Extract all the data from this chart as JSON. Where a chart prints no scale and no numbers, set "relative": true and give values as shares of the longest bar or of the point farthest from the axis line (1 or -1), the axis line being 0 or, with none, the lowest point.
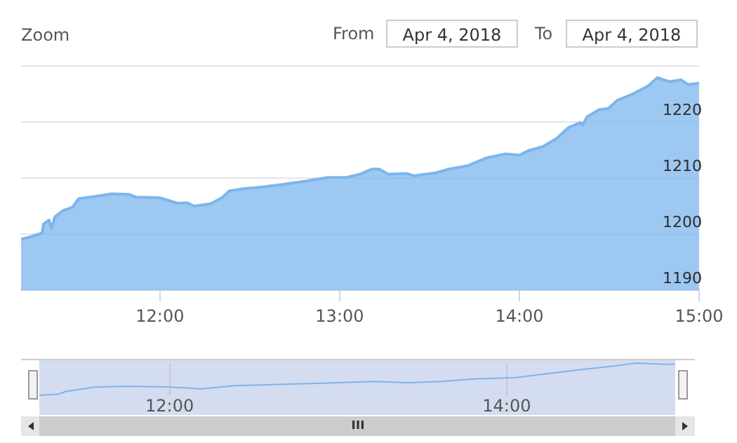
{
  "chart_data": [
    {
      "type": "area",
      "color": "#7cb5ec",
      "grid": "y",
      "annotations": [
        "Zoom",
        "From",
        "Apr 4, 2018",
        "To",
        "Apr 4, 2018"
      ],
      "x": [
        11.227,
        11.279,
        11.344,
        11.352,
        11.383,
        11.396,
        11.416,
        11.461,
        11.513,
        11.547,
        11.63,
        11.734,
        11.826,
        11.865,
        11.995,
        12.099,
        12.151,
        12.19,
        12.281,
        12.346,
        12.385,
        12.463,
        12.568,
        12.672,
        12.802,
        12.932,
        13.037,
        13.115,
        13.18,
        13.219,
        13.271,
        13.375,
        13.414,
        13.531,
        13.609,
        13.713,
        13.818,
        13.922,
        14.0,
        14.052,
        14.13,
        14.209,
        14.273,
        14.338,
        14.352,
        14.377,
        14.443,
        14.495,
        14.547,
        14.625,
        14.716,
        14.768,
        14.834,
        14.898,
        14.938,
        15.0
      ],
      "values": [
        1199.1,
        1199.5,
        1200.2,
        1201.8,
        1202.5,
        1201,
        1203.1,
        1204.2,
        1204.8,
        1206.3,
        1206.7,
        1207.2,
        1207.1,
        1206.6,
        1206.5,
        1205.5,
        1205.6,
        1205.0,
        1205.4,
        1206.5,
        1207.7,
        1208.1,
        1208.4,
        1208.8,
        1209.4,
        1210.1,
        1210.1,
        1210.7,
        1211.6,
        1211.6,
        1210.7,
        1210.8,
        1210.4,
        1210.9,
        1211.6,
        1212.2,
        1213.6,
        1214.3,
        1214.1,
        1214.9,
        1215.6,
        1217.1,
        1219.0,
        1219.9,
        1219.5,
        1220.9,
        1222.2,
        1222.4,
        1223.9,
        1224.9,
        1226.4,
        1227.9,
        1227.2,
        1227.5,
        1226.7,
        1226.9
      ],
      "xlim": [
        11.227,
        15
      ],
      "xticks": [
        {
          "value": 12,
          "label": "12:00"
        },
        {
          "value": 13,
          "label": "13:00"
        },
        {
          "value": 14,
          "label": "14:00"
        },
        {
          "value": 15,
          "label": "15:00"
        }
      ],
      "ylim": [
        1190,
        1230
      ],
      "yticks": [
        1190,
        1200,
        1210,
        1220,
        {
          "value": 1230,
          "label": null
        }
      ]
    },
    {
      "type": "line",
      "color": "#7cb5ec",
      "grid": "x",
      "relative": true,
      "x": [
        11.227,
        11.344,
        11.383,
        11.461,
        11.547,
        11.734,
        11.995,
        12.19,
        12.385,
        12.672,
        12.932,
        13.219,
        13.414,
        13.609,
        13.818,
        14.052,
        14.273,
        14.443,
        14.625,
        14.768,
        14.938,
        15.0
      ],
      "values": [
        0,
        0.04,
        0.12,
        0.18,
        0.25,
        0.28,
        0.26,
        0.2,
        0.3,
        0.34,
        0.38,
        0.43,
        0.39,
        0.43,
        0.51,
        0.55,
        0.69,
        0.8,
        0.9,
        1,
        0.96,
        0.97
      ],
      "xlim": [
        11.227,
        15
      ],
      "xticks": [
        {
          "value": 12,
          "label": "12:00"
        },
        {
          "value": 14,
          "label": "14:00"
        }
      ]
    }
  ]
}
